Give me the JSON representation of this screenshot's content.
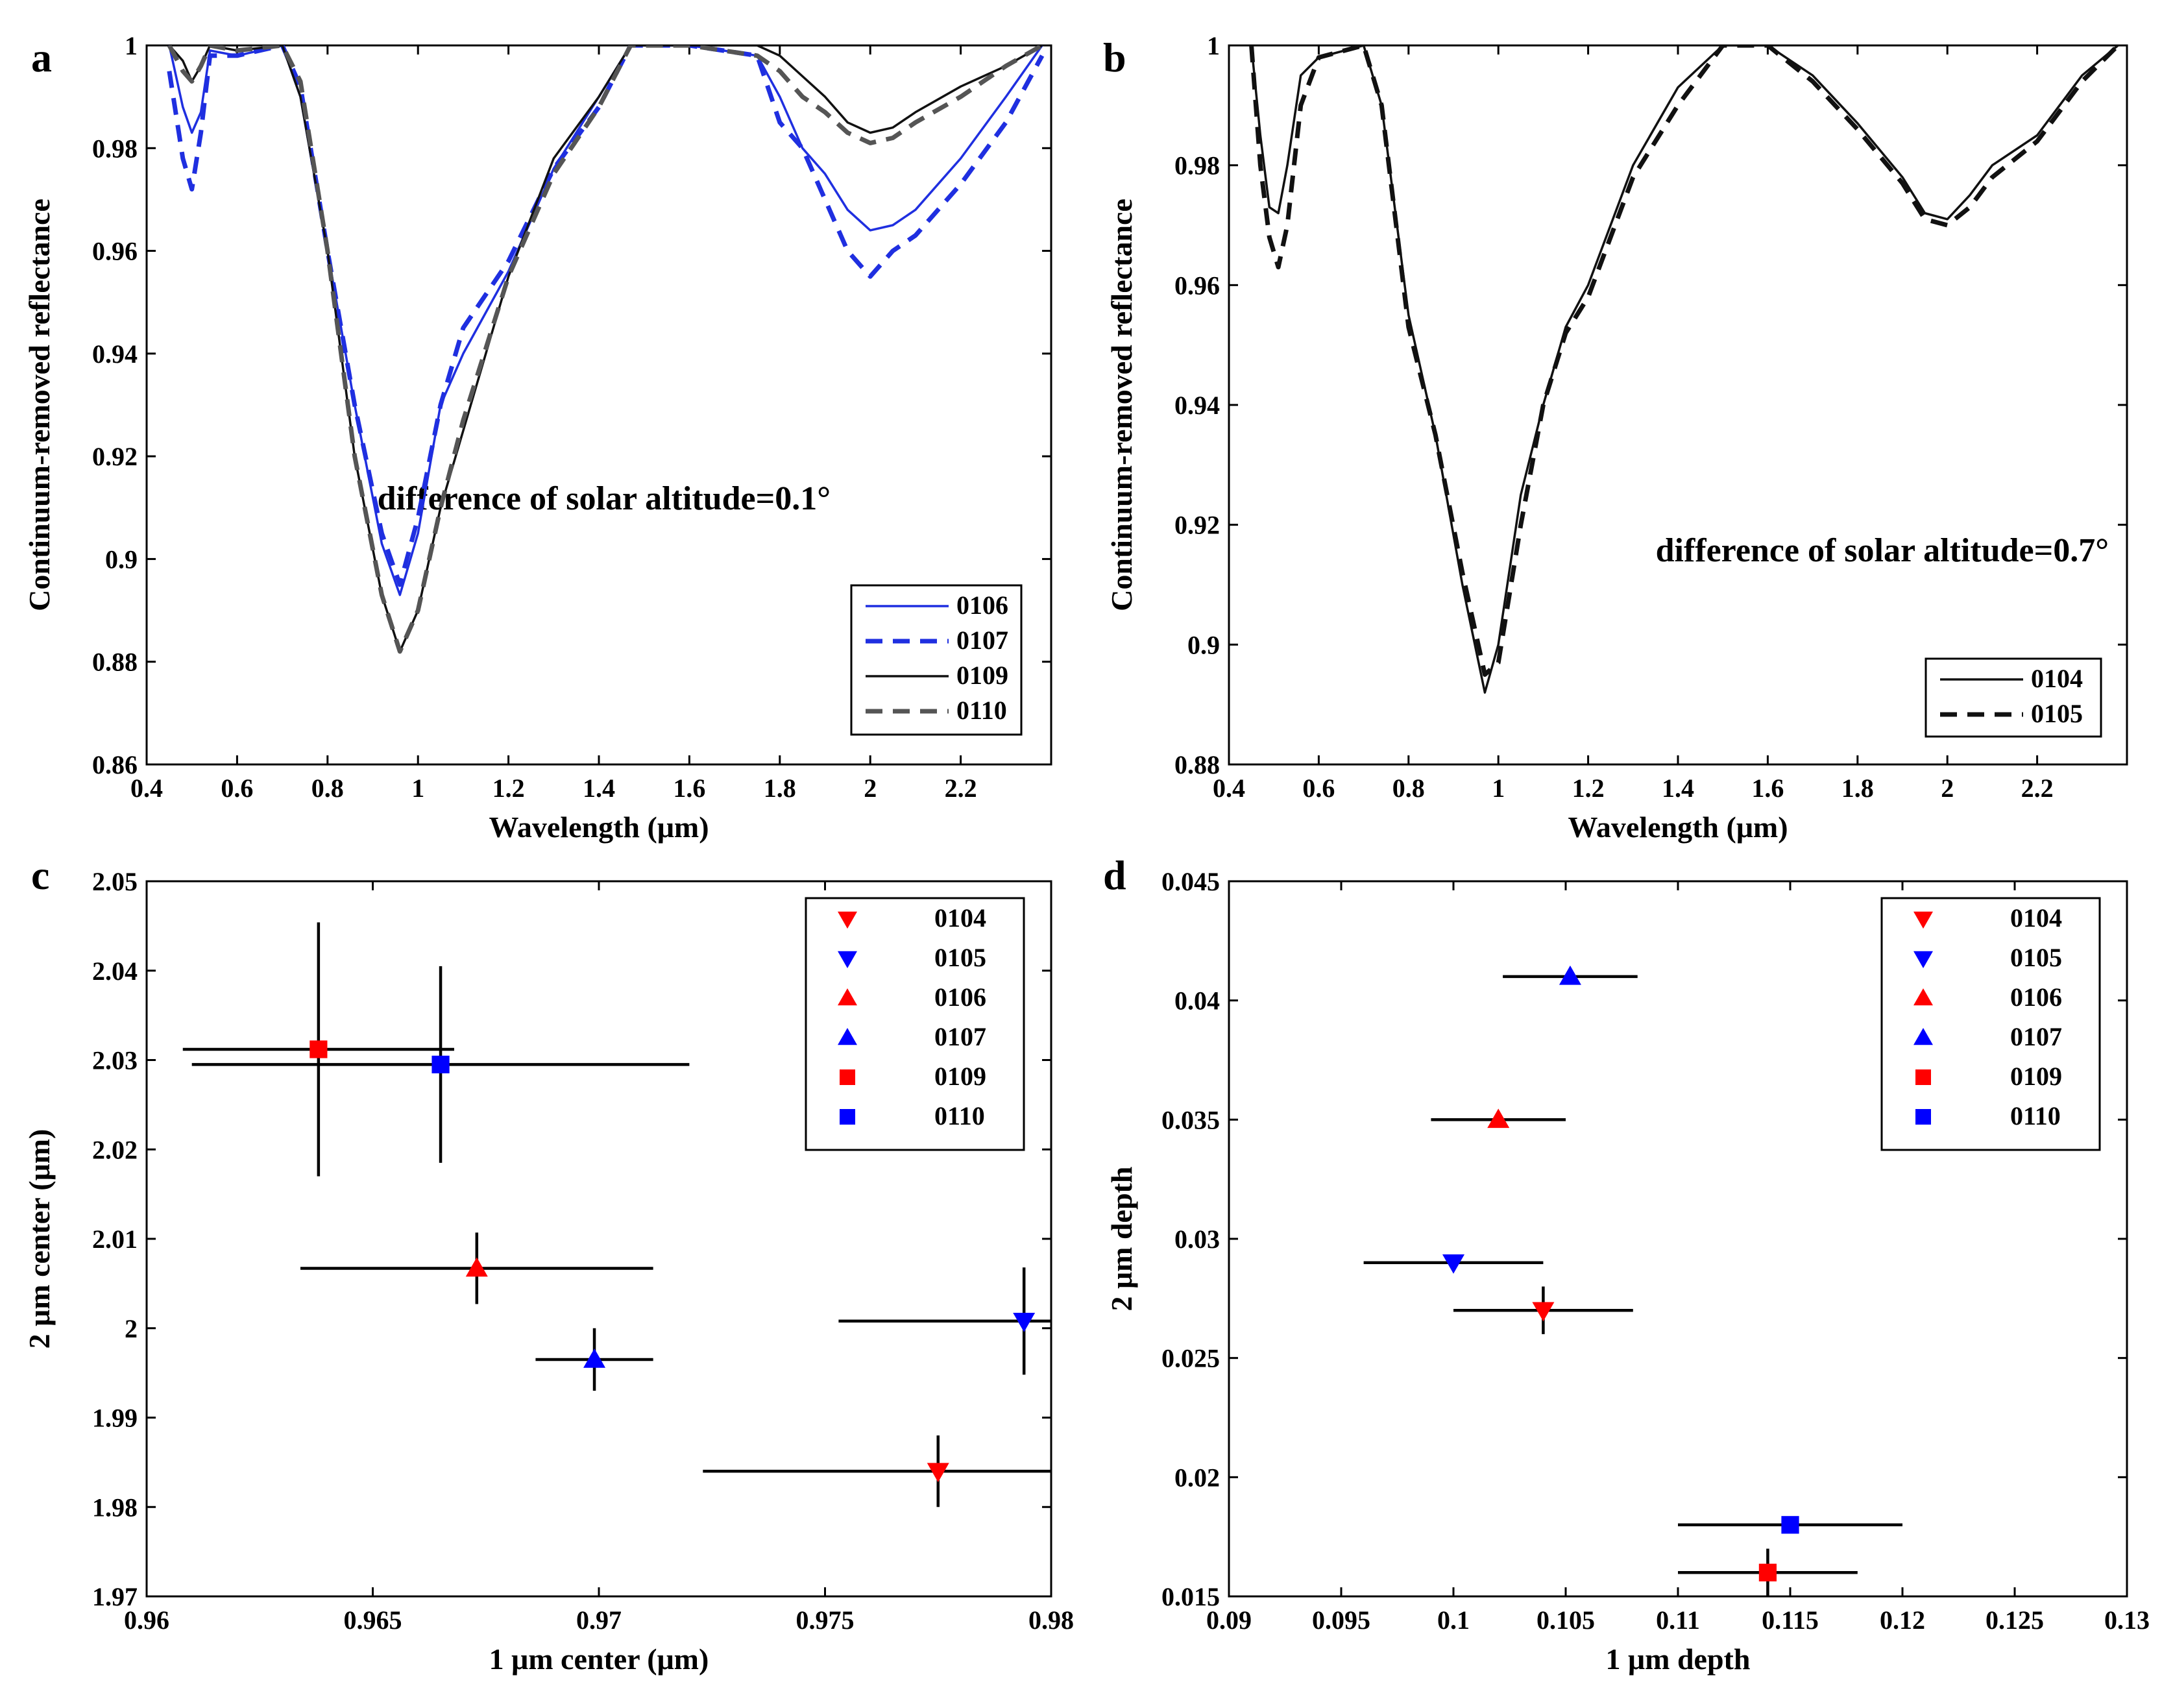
{
  "chart_data": [
    {
      "panel": "a",
      "type": "line",
      "xlabel": "Wavelength (μm)",
      "ylabel": "Continuum-removed reflectance",
      "xlim": [
        0.4,
        2.4
      ],
      "ylim": [
        0.86,
        1.0
      ],
      "xticks": [
        "0.4",
        "0.6",
        "0.8",
        "1",
        "1.2",
        "1.4",
        "1.6",
        "1.8",
        "2",
        "2.2"
      ],
      "yticks": [
        "0.86",
        "0.88",
        "0.9",
        "0.92",
        "0.94",
        "0.96",
        "0.98",
        "1"
      ],
      "annotation": "difference of solar altitude=0.1°",
      "legend": [
        "0106",
        "0107",
        "0109",
        "0110"
      ],
      "series": [
        {
          "name": "0106",
          "color": "#1f2fe0",
          "dash": "solid",
          "x": [
            0.45,
            0.48,
            0.5,
            0.52,
            0.54,
            0.6,
            0.7,
            0.74,
            0.8,
            0.86,
            0.92,
            0.96,
            1.0,
            1.05,
            1.1,
            1.2,
            1.3,
            1.4,
            1.47,
            1.6,
            1.75,
            1.8,
            1.85,
            1.9,
            1.95,
            2.0,
            2.05,
            2.1,
            2.2,
            2.3,
            2.38
          ],
          "y": [
            1.0,
            0.988,
            0.983,
            0.987,
            0.999,
            0.998,
            1.0,
            0.99,
            0.96,
            0.93,
            0.903,
            0.893,
            0.905,
            0.93,
            0.94,
            0.956,
            0.976,
            0.99,
            1.0,
            1.0,
            0.998,
            0.99,
            0.98,
            0.975,
            0.968,
            0.964,
            0.965,
            0.968,
            0.978,
            0.99,
            1.0
          ]
        },
        {
          "name": "0107",
          "color": "#1f2fe0",
          "dash": "dashed",
          "x": [
            0.45,
            0.48,
            0.5,
            0.52,
            0.54,
            0.6,
            0.7,
            0.74,
            0.8,
            0.86,
            0.92,
            0.96,
            1.0,
            1.05,
            1.1,
            1.2,
            1.3,
            1.4,
            1.47,
            1.6,
            1.75,
            1.8,
            1.85,
            1.9,
            1.95,
            2.0,
            2.05,
            2.1,
            2.2,
            2.3,
            2.38
          ],
          "y": [
            0.995,
            0.978,
            0.972,
            0.983,
            0.998,
            0.998,
            1.0,
            0.992,
            0.96,
            0.93,
            0.905,
            0.895,
            0.908,
            0.93,
            0.945,
            0.958,
            0.976,
            0.988,
            1.0,
            1.0,
            0.998,
            0.985,
            0.98,
            0.97,
            0.96,
            0.955,
            0.96,
            0.963,
            0.973,
            0.985,
            0.998
          ]
        },
        {
          "name": "0109",
          "color": "#111111",
          "dash": "solid",
          "x": [
            0.45,
            0.48,
            0.5,
            0.52,
            0.54,
            0.6,
            0.7,
            0.74,
            0.8,
            0.86,
            0.92,
            0.96,
            1.0,
            1.05,
            1.1,
            1.2,
            1.3,
            1.4,
            1.47,
            1.6,
            1.75,
            1.8,
            1.85,
            1.9,
            1.95,
            2.0,
            2.05,
            2.1,
            2.2,
            2.3,
            2.38
          ],
          "y": [
            1.0,
            0.997,
            0.993,
            0.996,
            1.0,
            0.999,
            1.0,
            0.99,
            0.96,
            0.92,
            0.893,
            0.882,
            0.89,
            0.91,
            0.925,
            0.955,
            0.978,
            0.99,
            1.0,
            1.0,
            1.0,
            0.998,
            0.994,
            0.99,
            0.985,
            0.983,
            0.984,
            0.987,
            0.992,
            0.996,
            1.0
          ]
        },
        {
          "name": "0110",
          "color": "#555555",
          "dash": "dashed",
          "x": [
            0.45,
            0.48,
            0.5,
            0.52,
            0.54,
            0.6,
            0.7,
            0.74,
            0.8,
            0.86,
            0.92,
            0.96,
            1.0,
            1.05,
            1.1,
            1.2,
            1.3,
            1.4,
            1.47,
            1.6,
            1.75,
            1.8,
            1.85,
            1.9,
            1.95,
            2.0,
            2.05,
            2.1,
            2.2,
            2.3,
            2.38
          ],
          "y": [
            1.0,
            0.995,
            0.993,
            0.996,
            1.0,
            0.999,
            1.0,
            0.993,
            0.96,
            0.92,
            0.893,
            0.882,
            0.89,
            0.91,
            0.927,
            0.955,
            0.975,
            0.988,
            1.0,
            1.0,
            0.998,
            0.995,
            0.99,
            0.987,
            0.983,
            0.981,
            0.982,
            0.985,
            0.99,
            0.996,
            1.0
          ]
        }
      ]
    },
    {
      "panel": "b",
      "type": "line",
      "xlabel": "Wavelength (μm)",
      "ylabel": "Continuum-removed reflectance",
      "xlim": [
        0.4,
        2.4
      ],
      "ylim": [
        0.88,
        1.0
      ],
      "xticks": [
        "0.4",
        "0.6",
        "0.8",
        "1",
        "1.2",
        "1.4",
        "1.6",
        "1.8",
        "2",
        "2.2"
      ],
      "yticks": [
        "0.88",
        "0.9",
        "0.92",
        "0.94",
        "0.96",
        "0.98",
        "1"
      ],
      "annotation": "difference of solar altitude=0.7°",
      "legend": [
        "0104",
        "0105"
      ],
      "series": [
        {
          "name": "0104",
          "color": "#111111",
          "dash": "solid",
          "x": [
            0.45,
            0.47,
            0.49,
            0.51,
            0.53,
            0.56,
            0.6,
            0.7,
            0.74,
            0.8,
            0.86,
            0.92,
            0.97,
            1.0,
            1.05,
            1.1,
            1.15,
            1.2,
            1.3,
            1.4,
            1.5,
            1.6,
            1.7,
            1.8,
            1.9,
            1.95,
            2.0,
            2.05,
            2.1,
            2.2,
            2.3,
            2.38
          ],
          "y": [
            1.0,
            0.985,
            0.973,
            0.972,
            0.98,
            0.995,
            0.998,
            1.0,
            0.99,
            0.955,
            0.935,
            0.91,
            0.892,
            0.9,
            0.925,
            0.94,
            0.953,
            0.96,
            0.98,
            0.993,
            1.0,
            1.0,
            0.995,
            0.987,
            0.978,
            0.972,
            0.971,
            0.975,
            0.98,
            0.985,
            0.995,
            1.0
          ]
        },
        {
          "name": "0105",
          "color": "#111111",
          "dash": "dashed",
          "x": [
            0.45,
            0.47,
            0.49,
            0.51,
            0.53,
            0.56,
            0.6,
            0.7,
            0.74,
            0.8,
            0.86,
            0.92,
            0.97,
            1.0,
            1.05,
            1.1,
            1.15,
            1.2,
            1.3,
            1.4,
            1.5,
            1.6,
            1.7,
            1.8,
            1.9,
            1.95,
            2.0,
            2.05,
            2.1,
            2.2,
            2.3,
            2.38
          ],
          "y": [
            1.0,
            0.98,
            0.968,
            0.963,
            0.97,
            0.99,
            0.998,
            1.0,
            0.99,
            0.953,
            0.935,
            0.912,
            0.895,
            0.897,
            0.92,
            0.94,
            0.952,
            0.958,
            0.978,
            0.99,
            1.0,
            1.0,
            0.994,
            0.986,
            0.977,
            0.971,
            0.97,
            0.973,
            0.978,
            0.984,
            0.994,
            1.0
          ]
        }
      ]
    },
    {
      "panel": "c",
      "type": "scatter",
      "xlabel": "1 μm center (μm)",
      "ylabel": "2 μm center (μm)",
      "xlim": [
        0.96,
        0.98
      ],
      "ylim": [
        1.97,
        2.05
      ],
      "xticks": [
        "0.96",
        "0.965",
        "0.97",
        "0.975",
        "0.98"
      ],
      "yticks": [
        "1.97",
        "1.98",
        "1.99",
        "2",
        "2.01",
        "2.02",
        "2.03",
        "2.04",
        "2.05"
      ],
      "legend": [
        "0104",
        "0105",
        "0106",
        "0107",
        "0109",
        "0110"
      ],
      "points": [
        {
          "name": "0104",
          "marker": "triangle-down",
          "color": "#ff0000",
          "x": 0.9775,
          "y": 1.984,
          "xerr": 0.0052,
          "yerr": 0.004
        },
        {
          "name": "0105",
          "marker": "triangle-down",
          "color": "#0000ff",
          "x": 0.9794,
          "y": 2.0008,
          "xerr": 0.0041,
          "yerr": 0.006
        },
        {
          "name": "0106",
          "marker": "triangle-up",
          "color": "#ff0000",
          "x": 0.9673,
          "y": 2.0067,
          "xerr": 0.0039,
          "yerr": 0.004
        },
        {
          "name": "0107",
          "marker": "triangle-up",
          "color": "#0000ff",
          "x": 0.9699,
          "y": 1.9965,
          "xerr": 0.0013,
          "yerr": 0.0035
        },
        {
          "name": "0109",
          "marker": "square",
          "color": "#ff0000",
          "x": 0.9638,
          "y": 2.0312,
          "xerr": 0.003,
          "yerr": 0.0142
        },
        {
          "name": "0110",
          "marker": "square",
          "color": "#0000ff",
          "x": 0.9665,
          "y": 2.0295,
          "xerr": 0.0055,
          "yerr": 0.011
        }
      ]
    },
    {
      "panel": "d",
      "type": "scatter",
      "xlabel": "1 μm depth",
      "ylabel": "2 μm depth",
      "xlim": [
        0.09,
        0.13
      ],
      "ylim": [
        0.015,
        0.045
      ],
      "xticks": [
        "0.09",
        "0.095",
        "0.1",
        "0.105",
        "0.11",
        "0.115",
        "0.12",
        "0.125",
        "0.13"
      ],
      "yticks": [
        "0.015",
        "0.02",
        "0.025",
        "0.03",
        "0.035",
        "0.04",
        "0.045"
      ],
      "legend": [
        "0104",
        "0105",
        "0106",
        "0107",
        "0109",
        "0110"
      ],
      "points": [
        {
          "name": "0104",
          "marker": "triangle-down",
          "color": "#ff0000",
          "x": 0.104,
          "y": 0.027,
          "xerr": 0.004,
          "yerr": 0.001
        },
        {
          "name": "0105",
          "marker": "triangle-down",
          "color": "#0000ff",
          "x": 0.1,
          "y": 0.029,
          "xerr": 0.004,
          "yerr": 0
        },
        {
          "name": "0106",
          "marker": "triangle-up",
          "color": "#ff0000",
          "x": 0.102,
          "y": 0.035,
          "xerr": 0.003,
          "yerr": 0
        },
        {
          "name": "0107",
          "marker": "triangle-up",
          "color": "#0000ff",
          "x": 0.1052,
          "y": 0.041,
          "xerr": 0.003,
          "yerr": 0
        },
        {
          "name": "0109",
          "marker": "square",
          "color": "#ff0000",
          "x": 0.114,
          "y": 0.016,
          "xerr": 0.004,
          "yerr": 0.001
        },
        {
          "name": "0110",
          "marker": "square",
          "color": "#0000ff",
          "x": 0.115,
          "y": 0.018,
          "xerr": 0.005,
          "yerr": 0
        }
      ]
    }
  ]
}
